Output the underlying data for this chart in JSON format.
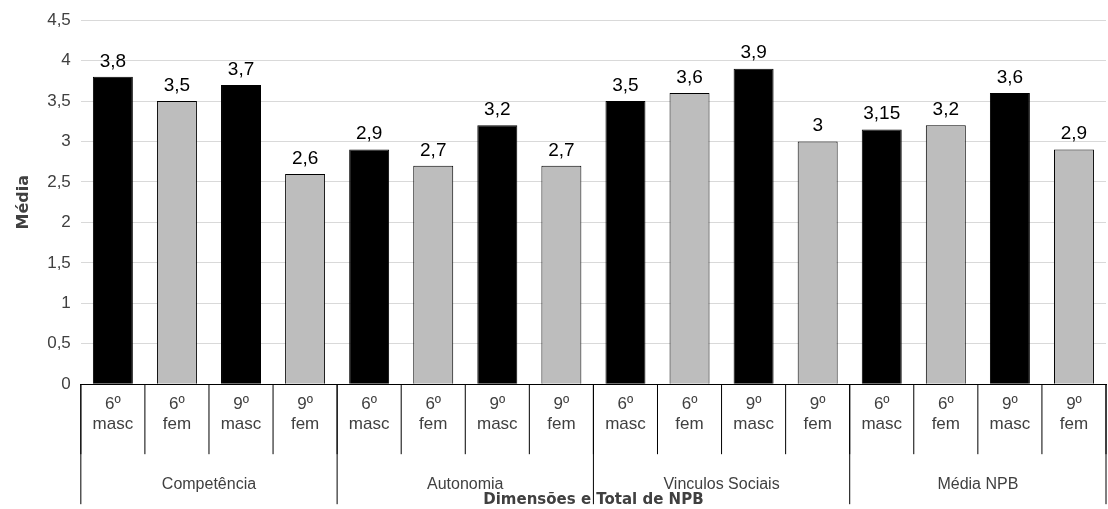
{
  "chart_data": {
    "type": "bar",
    "xlabel": "Dimensões e Total de NPB",
    "ylabel": "Média",
    "categories": [
      "6º masc",
      "6º fem",
      "9º masc",
      "9º fem",
      "6º masc",
      "6º fem",
      "9º masc",
      "9º fem",
      "6º masc",
      "6º fem",
      "9º masc",
      "9º fem",
      "6º masc",
      "6º fem",
      "9º masc",
      "9º fem"
    ],
    "values": [
      3.8,
      3.5,
      3.7,
      2.6,
      2.9,
      2.7,
      3.2,
      2.7,
      3.5,
      3.6,
      3.9,
      3,
      3.15,
      3.2,
      3.6,
      2.9
    ],
    "colors": [
      "#000000",
      "#bdbdbd",
      "#000000",
      "#bdbdbd",
      "#000000",
      "#bdbdbd",
      "#000000",
      "#bdbdbd",
      "#000000",
      "#bdbdbd",
      "#000000",
      "#bdbdbd",
      "#000000",
      "#bdbdbd",
      "#000000",
      "#bdbdbd"
    ],
    "value_labels": [
      "3,8",
      "3,5",
      "3,7",
      "2,6",
      "2,9",
      "2,7",
      "3,2",
      "2,7",
      "3,5",
      "3,6",
      "3,9",
      "3",
      "3,15",
      "3,2",
      "3,6",
      "2,9"
    ],
    "annotations": [
      "Competência",
      "Autonomia",
      "Vinculos Sociais",
      "Média NPB"
    ],
    "ylim": [
      0,
      4.5
    ],
    "yticks": [
      0,
      {
        "value": 0.5,
        "label": "0,5"
      },
      1,
      {
        "value": 1.5,
        "label": "1,5"
      },
      2,
      {
        "value": 2.5,
        "label": "2,5"
      },
      3,
      {
        "value": 3.5,
        "label": "3,5"
      },
      4,
      {
        "value": 4.5,
        "label": "4,5"
      }
    ],
    "grid": "y",
    "legend": false
  }
}
